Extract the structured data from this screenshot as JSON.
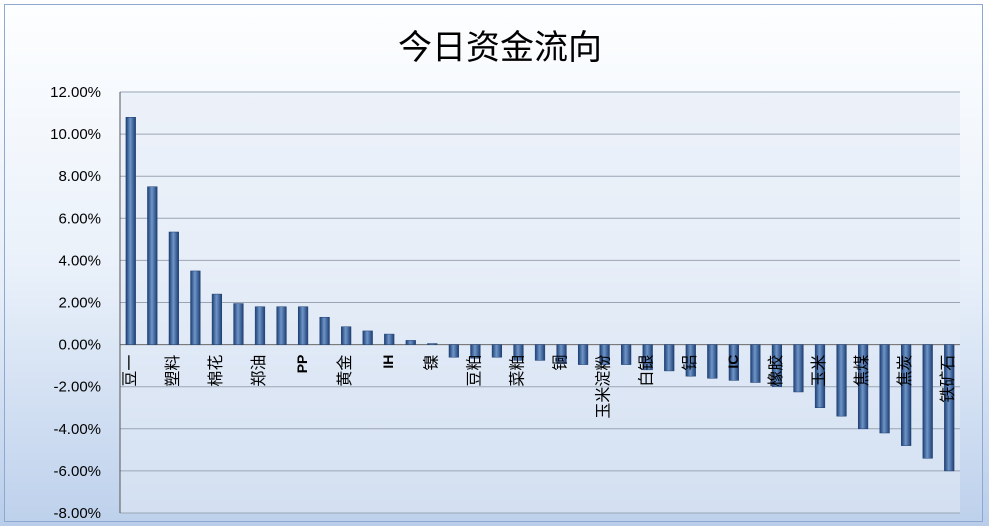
{
  "chart_data": {
    "type": "bar",
    "title": "今日资金流向",
    "xlabel": "",
    "ylabel": "",
    "ylim": [
      -8,
      12
    ],
    "yticks": [
      "12.00%",
      "10.00%",
      "8.00%",
      "6.00%",
      "4.00%",
      "2.00%",
      "0.00%",
      "-2.00%",
      "-4.00%",
      "-6.00%",
      "-8.00%"
    ],
    "grid": true,
    "categories": [
      "豆一",
      "",
      "塑料",
      "",
      "棉花",
      "",
      "郑油",
      "",
      "PP",
      "",
      "黄金",
      "",
      "IH",
      "",
      "镍",
      "",
      "豆粕",
      "",
      "菜粕",
      "",
      "铜",
      "",
      "玉米淀粉",
      "",
      "白银",
      "",
      "铝",
      "",
      "IC",
      "",
      "橡胶",
      "",
      "玉米",
      "",
      "焦煤",
      "",
      "焦炭",
      "",
      "铁矿石"
    ],
    "values": [
      10.8,
      7.5,
      5.35,
      3.5,
      2.4,
      1.95,
      1.8,
      1.8,
      1.8,
      1.3,
      0.85,
      0.65,
      0.5,
      0.2,
      0.05,
      -0.6,
      -0.65,
      -0.6,
      -0.75,
      -0.75,
      -0.9,
      -0.95,
      -0.95,
      -0.95,
      -1.2,
      -1.25,
      -1.5,
      -1.6,
      -1.7,
      -1.8,
      -2.0,
      -2.25,
      -3.0,
      -3.4,
      -4.0,
      -4.2,
      -4.8,
      -5.4,
      -6.0
    ],
    "colors": {
      "bar": "#3a64a0",
      "bar_dark": "#1d3f73",
      "bar_light": "#6f95c8"
    }
  }
}
